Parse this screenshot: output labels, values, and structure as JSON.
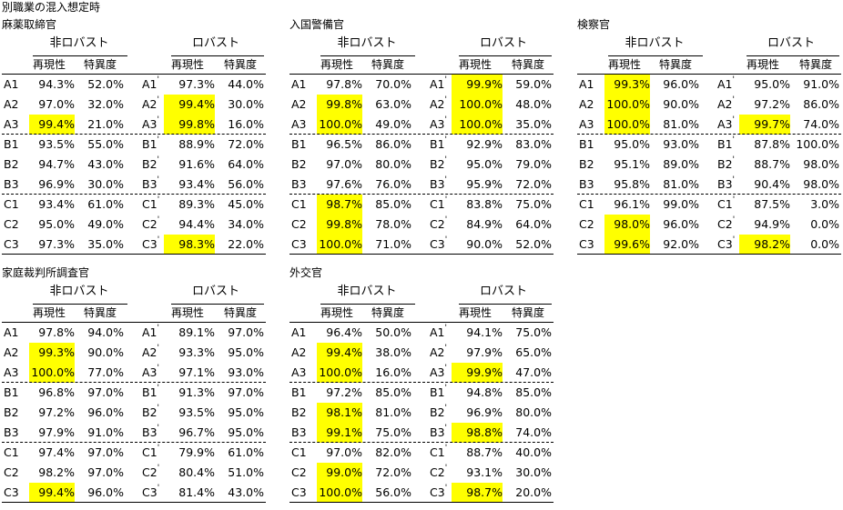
{
  "page_title": "別職業の混入想定時",
  "group_labels": {
    "non_robust": "非ロバスト",
    "robust": "ロバスト"
  },
  "column_labels": {
    "reproducibility": "再現性",
    "specificity": "特異度"
  },
  "highlight_color": "#ffff00",
  "blocks": [
    {
      "name": "麻薬取締官",
      "rows": [
        {
          "label": "A1",
          "r1": "94.3%",
          "s1": "52.0%",
          "label2": "A1'",
          "r2": "97.3%",
          "s2": "44.0%",
          "hl1": false,
          "hl2": false
        },
        {
          "label": "A2",
          "r1": "97.0%",
          "s1": "32.0%",
          "label2": "A2'",
          "r2": "99.4%",
          "s2": "30.0%",
          "hl1": false,
          "hl2": true
        },
        {
          "label": "A3",
          "r1": "99.4%",
          "s1": "21.0%",
          "label2": "A3'",
          "r2": "99.8%",
          "s2": "16.0%",
          "hl1": true,
          "hl2": true
        },
        {
          "label": "B1",
          "r1": "93.5%",
          "s1": "55.0%",
          "label2": "B1'",
          "r2": "88.9%",
          "s2": "72.0%",
          "hl1": false,
          "hl2": false
        },
        {
          "label": "B2",
          "r1": "94.7%",
          "s1": "43.0%",
          "label2": "B2'",
          "r2": "91.6%",
          "s2": "64.0%",
          "hl1": false,
          "hl2": false
        },
        {
          "label": "B3",
          "r1": "96.9%",
          "s1": "30.0%",
          "label2": "B3'",
          "r2": "93.4%",
          "s2": "56.0%",
          "hl1": false,
          "hl2": false
        },
        {
          "label": "C1",
          "r1": "93.4%",
          "s1": "61.0%",
          "label2": "C1'",
          "r2": "89.3%",
          "s2": "45.0%",
          "hl1": false,
          "hl2": false
        },
        {
          "label": "C2",
          "r1": "95.0%",
          "s1": "49.0%",
          "label2": "C2'",
          "r2": "94.4%",
          "s2": "34.0%",
          "hl1": false,
          "hl2": false
        },
        {
          "label": "C3",
          "r1": "97.3%",
          "s1": "35.0%",
          "label2": "C3'",
          "r2": "98.3%",
          "s2": "22.0%",
          "hl1": false,
          "hl2": true
        }
      ]
    },
    {
      "name": "入国警備官",
      "rows": [
        {
          "label": "A1",
          "r1": "97.8%",
          "s1": "70.0%",
          "label2": "A1'",
          "r2": "99.9%",
          "s2": "59.0%",
          "hl1": false,
          "hl2": true
        },
        {
          "label": "A2",
          "r1": "99.8%",
          "s1": "63.0%",
          "label2": "A2'",
          "r2": "100.0%",
          "s2": "48.0%",
          "hl1": true,
          "hl2": true
        },
        {
          "label": "A3",
          "r1": "100.0%",
          "s1": "49.0%",
          "label2": "A3'",
          "r2": "100.0%",
          "s2": "35.0%",
          "hl1": true,
          "hl2": true
        },
        {
          "label": "B1",
          "r1": "96.5%",
          "s1": "86.0%",
          "label2": "B1'",
          "r2": "92.9%",
          "s2": "83.0%",
          "hl1": false,
          "hl2": false
        },
        {
          "label": "B2",
          "r1": "97.0%",
          "s1": "80.0%",
          "label2": "B2'",
          "r2": "95.0%",
          "s2": "79.0%",
          "hl1": false,
          "hl2": false
        },
        {
          "label": "B3",
          "r1": "97.6%",
          "s1": "76.0%",
          "label2": "B3'",
          "r2": "95.9%",
          "s2": "72.0%",
          "hl1": false,
          "hl2": false
        },
        {
          "label": "C1",
          "r1": "98.7%",
          "s1": "85.0%",
          "label2": "C1'",
          "r2": "83.8%",
          "s2": "75.0%",
          "hl1": true,
          "hl2": false
        },
        {
          "label": "C2",
          "r1": "99.8%",
          "s1": "78.0%",
          "label2": "C2'",
          "r2": "84.9%",
          "s2": "64.0%",
          "hl1": true,
          "hl2": false
        },
        {
          "label": "C3",
          "r1": "100.0%",
          "s1": "71.0%",
          "label2": "C3'",
          "r2": "90.0%",
          "s2": "52.0%",
          "hl1": true,
          "hl2": false
        }
      ]
    },
    {
      "name": "検察官",
      "rows": [
        {
          "label": "A1",
          "r1": "99.3%",
          "s1": "96.0%",
          "label2": "A1'",
          "r2": "95.0%",
          "s2": "91.0%",
          "hl1": true,
          "hl2": false
        },
        {
          "label": "A2",
          "r1": "100.0%",
          "s1": "90.0%",
          "label2": "A2'",
          "r2": "97.2%",
          "s2": "86.0%",
          "hl1": true,
          "hl2": false
        },
        {
          "label": "A3",
          "r1": "100.0%",
          "s1": "81.0%",
          "label2": "A3'",
          "r2": "99.7%",
          "s2": "74.0%",
          "hl1": true,
          "hl2": true
        },
        {
          "label": "B1",
          "r1": "95.0%",
          "s1": "93.0%",
          "label2": "B1'",
          "r2": "87.8%",
          "s2": "100.0%",
          "hl1": false,
          "hl2": false
        },
        {
          "label": "B2",
          "r1": "95.1%",
          "s1": "89.0%",
          "label2": "B2'",
          "r2": "88.7%",
          "s2": "98.0%",
          "hl1": false,
          "hl2": false
        },
        {
          "label": "B3",
          "r1": "95.8%",
          "s1": "81.0%",
          "label2": "B3'",
          "r2": "90.4%",
          "s2": "98.0%",
          "hl1": false,
          "hl2": false
        },
        {
          "label": "C1",
          "r1": "96.1%",
          "s1": "99.0%",
          "label2": "C1'",
          "r2": "87.5%",
          "s2": "3.0%",
          "hl1": false,
          "hl2": false
        },
        {
          "label": "C2",
          "r1": "98.0%",
          "s1": "96.0%",
          "label2": "C2'",
          "r2": "94.9%",
          "s2": "0.0%",
          "hl1": true,
          "hl2": false
        },
        {
          "label": "C3",
          "r1": "99.6%",
          "s1": "92.0%",
          "label2": "C3'",
          "r2": "98.2%",
          "s2": "0.0%",
          "hl1": true,
          "hl2": true
        }
      ]
    },
    {
      "name": "家庭裁判所調査官",
      "rows": [
        {
          "label": "A1",
          "r1": "97.8%",
          "s1": "94.0%",
          "label2": "A1'",
          "r2": "89.1%",
          "s2": "97.0%",
          "hl1": false,
          "hl2": false
        },
        {
          "label": "A2",
          "r1": "99.3%",
          "s1": "90.0%",
          "label2": "A2'",
          "r2": "93.3%",
          "s2": "95.0%",
          "hl1": true,
          "hl2": false
        },
        {
          "label": "A3",
          "r1": "100.0%",
          "s1": "77.0%",
          "label2": "A3'",
          "r2": "97.1%",
          "s2": "93.0%",
          "hl1": true,
          "hl2": false
        },
        {
          "label": "B1",
          "r1": "96.8%",
          "s1": "97.0%",
          "label2": "B1'",
          "r2": "91.3%",
          "s2": "97.0%",
          "hl1": false,
          "hl2": false
        },
        {
          "label": "B2",
          "r1": "97.2%",
          "s1": "96.0%",
          "label2": "B2'",
          "r2": "93.5%",
          "s2": "95.0%",
          "hl1": false,
          "hl2": false
        },
        {
          "label": "B3",
          "r1": "97.9%",
          "s1": "91.0%",
          "label2": "B3'",
          "r2": "96.7%",
          "s2": "95.0%",
          "hl1": false,
          "hl2": false
        },
        {
          "label": "C1",
          "r1": "97.4%",
          "s1": "97.0%",
          "label2": "C1'",
          "r2": "79.9%",
          "s2": "61.0%",
          "hl1": false,
          "hl2": false
        },
        {
          "label": "C2",
          "r1": "98.2%",
          "s1": "97.0%",
          "label2": "C2'",
          "r2": "80.4%",
          "s2": "51.0%",
          "hl1": false,
          "hl2": false
        },
        {
          "label": "C3",
          "r1": "99.4%",
          "s1": "96.0%",
          "label2": "C3'",
          "r2": "81.4%",
          "s2": "43.0%",
          "hl1": true,
          "hl2": false
        }
      ]
    },
    {
      "name": "外交官",
      "rows": [
        {
          "label": "A1",
          "r1": "96.4%",
          "s1": "50.0%",
          "label2": "A1'",
          "r2": "94.1%",
          "s2": "75.0%",
          "hl1": false,
          "hl2": false
        },
        {
          "label": "A2",
          "r1": "99.4%",
          "s1": "38.0%",
          "label2": "A2'",
          "r2": "97.9%",
          "s2": "65.0%",
          "hl1": true,
          "hl2": false
        },
        {
          "label": "A3",
          "r1": "100.0%",
          "s1": "16.0%",
          "label2": "A3'",
          "r2": "99.9%",
          "s2": "47.0%",
          "hl1": true,
          "hl2": true
        },
        {
          "label": "B1",
          "r1": "97.2%",
          "s1": "85.0%",
          "label2": "B1'",
          "r2": "94.8%",
          "s2": "85.0%",
          "hl1": false,
          "hl2": false
        },
        {
          "label": "B2",
          "r1": "98.1%",
          "s1": "81.0%",
          "label2": "B2'",
          "r2": "96.9%",
          "s2": "80.0%",
          "hl1": true,
          "hl2": false
        },
        {
          "label": "B3",
          "r1": "99.1%",
          "s1": "75.0%",
          "label2": "B3'",
          "r2": "98.8%",
          "s2": "74.0%",
          "hl1": true,
          "hl2": true
        },
        {
          "label": "C1",
          "r1": "97.0%",
          "s1": "82.0%",
          "label2": "C1'",
          "r2": "88.7%",
          "s2": "40.0%",
          "hl1": false,
          "hl2": false
        },
        {
          "label": "C2",
          "r1": "99.0%",
          "s1": "72.0%",
          "label2": "C2'",
          "r2": "93.1%",
          "s2": "30.0%",
          "hl1": true,
          "hl2": false
        },
        {
          "label": "C3",
          "r1": "100.0%",
          "s1": "56.0%",
          "label2": "C3'",
          "r2": "98.7%",
          "s2": "20.0%",
          "hl1": true,
          "hl2": true
        }
      ]
    }
  ]
}
